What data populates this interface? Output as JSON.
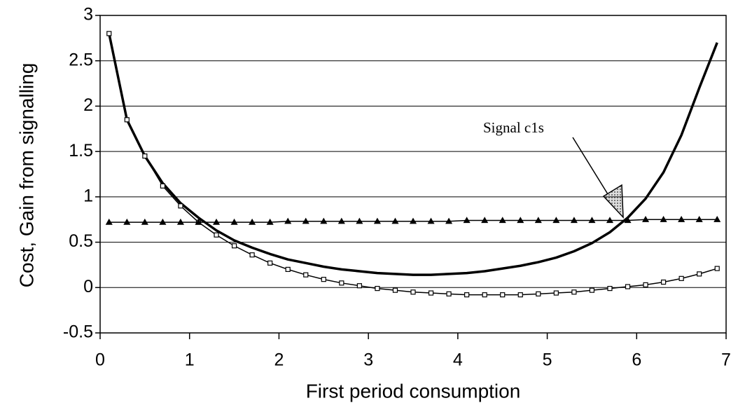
{
  "chart_data": {
    "type": "line",
    "xlabel": "First period consumption",
    "ylabel": "Cost, Gain from signalling",
    "annotation": "Signal c1s",
    "xlim": [
      0,
      7
    ],
    "xticks": [
      0,
      1,
      2,
      3,
      4,
      5,
      6,
      7
    ],
    "ylim": [
      -0.5,
      3
    ],
    "yticks": [
      -0.5,
      0,
      0.5,
      1,
      1.5,
      2,
      2.5,
      3
    ],
    "grid": true,
    "x": [
      0.1,
      0.3,
      0.5,
      0.7,
      0.9,
      1.1,
      1.3,
      1.5,
      1.7,
      1.9,
      2.1,
      2.3,
      2.5,
      2.7,
      2.9,
      3.1,
      3.3,
      3.5,
      3.7,
      3.9,
      4.1,
      4.3,
      4.5,
      4.7,
      4.9,
      5.1,
      5.3,
      5.5,
      5.7,
      5.9,
      6.1,
      6.3,
      6.5,
      6.7,
      6.9
    ],
    "series": [
      {
        "color": "#000000",
        "marker": "none",
        "line_width": 3.5,
        "values": [
          2.8,
          1.85,
          1.45,
          1.15,
          0.93,
          0.77,
          0.63,
          0.52,
          0.44,
          0.37,
          0.31,
          0.27,
          0.23,
          0.2,
          0.18,
          0.16,
          0.15,
          0.14,
          0.14,
          0.15,
          0.16,
          0.18,
          0.21,
          0.24,
          0.28,
          0.33,
          0.4,
          0.49,
          0.61,
          0.77,
          0.98,
          1.27,
          1.68,
          2.2,
          2.7
        ]
      },
      {
        "color": "#000000",
        "marker": "square",
        "line_width": 1.5,
        "values": [
          2.8,
          1.85,
          1.45,
          1.12,
          0.9,
          0.72,
          0.58,
          0.46,
          0.36,
          0.27,
          0.2,
          0.14,
          0.09,
          0.05,
          0.02,
          -0.01,
          -0.03,
          -0.05,
          -0.06,
          -0.07,
          -0.08,
          -0.08,
          -0.08,
          -0.08,
          -0.07,
          -0.06,
          -0.05,
          -0.03,
          -0.01,
          0.01,
          0.03,
          0.06,
          0.1,
          0.15,
          0.21
        ]
      },
      {
        "color": "#000000",
        "marker": "triangle",
        "line_width": 1.5,
        "values": [
          0.72,
          0.72,
          0.72,
          0.72,
          0.72,
          0.72,
          0.72,
          0.72,
          0.72,
          0.72,
          0.73,
          0.73,
          0.73,
          0.73,
          0.73,
          0.73,
          0.73,
          0.73,
          0.73,
          0.73,
          0.74,
          0.74,
          0.74,
          0.74,
          0.74,
          0.74,
          0.74,
          0.74,
          0.74,
          0.74,
          0.75,
          0.75,
          0.75,
          0.75,
          0.75
        ]
      }
    ]
  }
}
